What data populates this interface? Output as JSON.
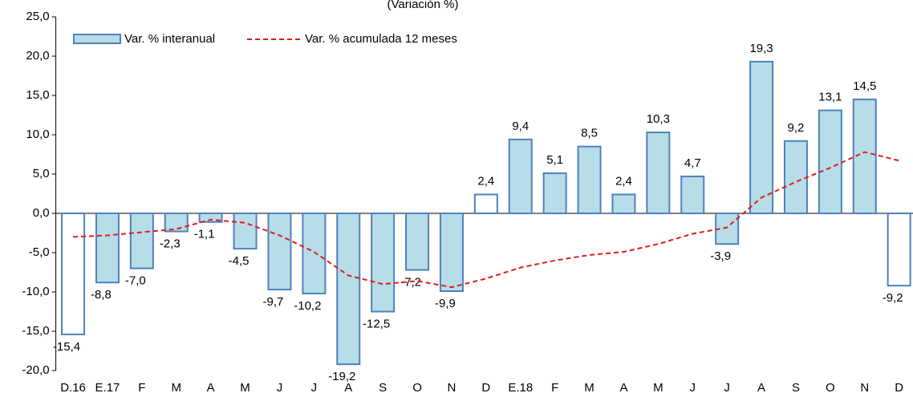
{
  "chart_data": {
    "type": "bar",
    "title": "(Variación %)",
    "categories": [
      "D.16",
      "E.17",
      "F",
      "M",
      "A",
      "M",
      "J",
      "J",
      "A",
      "S",
      "O",
      "N",
      "D",
      "E.18",
      "F",
      "M",
      "A",
      "M",
      "J",
      "J",
      "A",
      "S",
      "O",
      "N",
      "D"
    ],
    "series": [
      {
        "name": "Var. % interanual",
        "type": "bar",
        "color": "#b7dde8",
        "edge_color": "#4f81bd",
        "bar_colors": [
          "#ffffff",
          "#b7dde8",
          "#b7dde8",
          "#b7dde8",
          "#b7dde8",
          "#b7dde8",
          "#b7dde8",
          "#b7dde8",
          "#b7dde8",
          "#b7dde8",
          "#b7dde8",
          "#b7dde8",
          "#ffffff",
          "#b7dde8",
          "#b7dde8",
          "#b7dde8",
          "#b7dde8",
          "#b7dde8",
          "#b7dde8",
          "#b7dde8",
          "#b7dde8",
          "#b7dde8",
          "#b7dde8",
          "#b7dde8",
          "#ffffff"
        ],
        "values": [
          -15.4,
          -8.8,
          -7.0,
          -2.3,
          -1.1,
          -4.5,
          -9.7,
          -10.2,
          -19.2,
          -12.5,
          -7.2,
          -9.9,
          2.4,
          9.4,
          5.1,
          8.5,
          2.4,
          10.3,
          4.7,
          -3.9,
          19.3,
          9.2,
          13.1,
          14.5,
          -9.2
        ],
        "value_labels": [
          "-15,4",
          "-8,8",
          "-7,0",
          "-2,3",
          "-1,1",
          "-4,5",
          "-9,7",
          "-10,2",
          "-19,2",
          "-12,5",
          "-7,2",
          "-9,9",
          "2,4",
          "9,4",
          "5,1",
          "8,5",
          "2,4",
          "10,3",
          "4,7",
          "-3,9",
          "19,3",
          "9,2",
          "13,1",
          "14,5",
          "-9,2"
        ]
      },
      {
        "name": "Var. % acumulada 12 meses",
        "type": "line",
        "color": "#e31a1c",
        "dashed": true,
        "values": [
          -3.0,
          -2.8,
          -2.4,
          -2.0,
          -0.8,
          -1.2,
          -2.8,
          -4.9,
          -7.9,
          -9.0,
          -8.6,
          -9.4,
          -8.3,
          -6.9,
          -6.0,
          -5.3,
          -4.9,
          -3.9,
          -2.6,
          -1.8,
          2.0,
          4.0,
          5.8,
          7.8,
          6.7
        ]
      }
    ],
    "ylim": [
      -20,
      25
    ],
    "yticks": [
      {
        "value": -20,
        "label": "-20,0"
      },
      {
        "value": -15,
        "label": "-15,0"
      },
      {
        "value": -10,
        "label": "-10,0"
      },
      {
        "value": -5,
        "label": "-5,0"
      },
      {
        "value": 0,
        "label": "0,0"
      },
      {
        "value": 5,
        "label": "5,0"
      },
      {
        "value": 10,
        "label": "10,0"
      },
      {
        "value": 15,
        "label": "15,0"
      },
      {
        "value": 20,
        "label": "20,0"
      },
      {
        "value": 25,
        "label": "25,0"
      }
    ],
    "legend": "top-left"
  }
}
